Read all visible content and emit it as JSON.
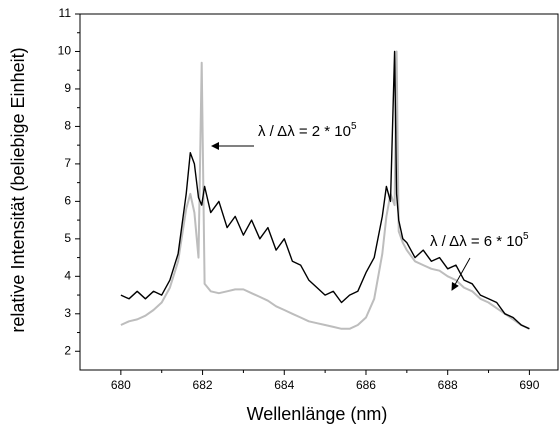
{
  "chart_data": {
    "type": "line",
    "x_label": "Wellenlänge (nm)",
    "y_label": "relative Intensität (beliebige Einheit)",
    "xlim": [
      679,
      690.7
    ],
    "ylim": [
      1.5,
      11
    ],
    "xticks": [
      680,
      682,
      684,
      686,
      688,
      690
    ],
    "yticks": [
      2,
      3,
      4,
      5,
      6,
      7,
      8,
      9,
      10,
      11
    ],
    "x": [
      680,
      680.2,
      680.4,
      680.6,
      680.8,
      681,
      681.2,
      681.4,
      681.6,
      681.7,
      681.8,
      681.9,
      681.98,
      682.05,
      682.2,
      682.4,
      682.6,
      682.8,
      683,
      683.2,
      683.4,
      683.6,
      683.8,
      684,
      684.2,
      684.4,
      684.6,
      684.8,
      685,
      685.2,
      685.4,
      685.6,
      685.8,
      686,
      686.2,
      686.4,
      686.5,
      686.6,
      686.7,
      686.75,
      686.8,
      686.9,
      687,
      687.2,
      687.4,
      687.6,
      687.8,
      688,
      688.2,
      688.4,
      688.6,
      688.8,
      689,
      689.2,
      689.4,
      689.6,
      689.8,
      690
    ],
    "series": [
      {
        "color": "#000000",
        "values": [
          3.5,
          3.4,
          3.6,
          3.4,
          3.6,
          3.5,
          3.9,
          4.6,
          6.2,
          7.3,
          7.0,
          6.1,
          5.9,
          6.4,
          5.7,
          6.0,
          5.3,
          5.6,
          5.1,
          5.5,
          5.0,
          5.3,
          4.7,
          5.0,
          4.4,
          4.3,
          3.9,
          3.7,
          3.5,
          3.6,
          3.3,
          3.5,
          3.6,
          4.1,
          4.5,
          5.6,
          6.4,
          6.0,
          10.0,
          6.2,
          5.5,
          5.0,
          4.9,
          4.5,
          4.7,
          4.4,
          4.5,
          4.2,
          4.3,
          3.9,
          3.8,
          3.5,
          3.4,
          3.3,
          3.0,
          2.9,
          2.7,
          2.6
        ]
      },
      {
        "color": "#bdbdbd",
        "values": [
          2.7,
          2.8,
          2.85,
          2.95,
          3.1,
          3.3,
          3.7,
          4.4,
          5.8,
          6.2,
          5.7,
          4.5,
          9.7,
          3.8,
          3.6,
          3.55,
          3.6,
          3.65,
          3.65,
          3.55,
          3.45,
          3.35,
          3.2,
          3.1,
          3.0,
          2.9,
          2.8,
          2.75,
          2.7,
          2.65,
          2.6,
          2.6,
          2.7,
          2.9,
          3.4,
          4.6,
          5.6,
          6.2,
          5.9,
          10.0,
          5.2,
          4.9,
          4.7,
          4.4,
          4.3,
          4.2,
          4.15,
          4.0,
          3.9,
          3.7,
          3.6,
          3.4,
          3.3,
          3.15,
          3.0,
          2.85,
          2.7,
          2.6
        ]
      }
    ],
    "annotations": [
      {
        "text": "λ / Δλ = 2 * 10",
        "sup": "5"
      },
      {
        "text": "λ / Δλ = 6 * 10",
        "sup": "5"
      }
    ]
  }
}
